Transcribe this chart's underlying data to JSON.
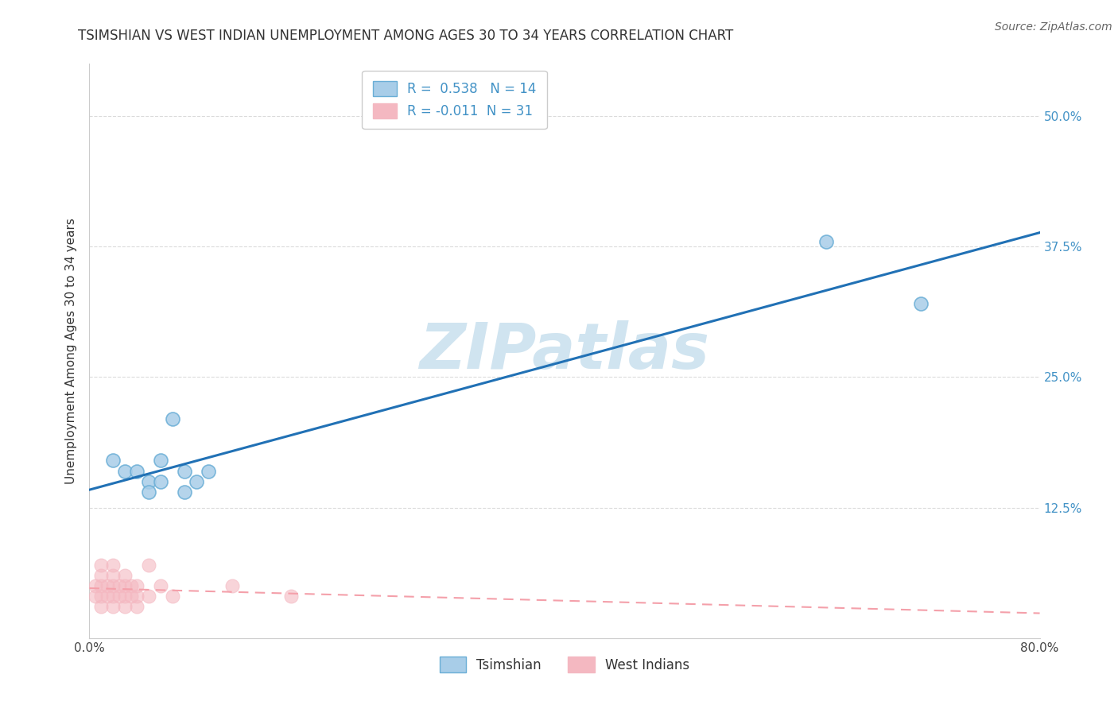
{
  "title": "TSIMSHIAN VS WEST INDIAN UNEMPLOYMENT AMONG AGES 30 TO 34 YEARS CORRELATION CHART",
  "source": "Source: ZipAtlas.com",
  "xlabel": "",
  "ylabel": "Unemployment Among Ages 30 to 34 years",
  "xlim": [
    0.0,
    0.8
  ],
  "ylim": [
    0.0,
    0.55
  ],
  "yticks": [
    0.0,
    0.125,
    0.25,
    0.375,
    0.5
  ],
  "ytick_labels_right": [
    "",
    "12.5%",
    "25.0%",
    "37.5%",
    "50.0%"
  ],
  "background_color": "#ffffff",
  "watermark": "ZIPatlas",
  "watermark_color": "#d0e4f0",
  "tsimshian_color": "#a8cde8",
  "tsimshian_edge_color": "#6aaed6",
  "west_indian_color": "#f4b8c1",
  "west_indian_edge_color": "#f4b8c1",
  "R_tsimshian": 0.538,
  "N_tsimshian": 14,
  "R_west_indian": -0.011,
  "N_west_indian": 31,
  "tsimshian_x": [
    0.02,
    0.03,
    0.04,
    0.05,
    0.05,
    0.06,
    0.06,
    0.07,
    0.08,
    0.08,
    0.09,
    0.1,
    0.62,
    0.7
  ],
  "tsimshian_y": [
    0.17,
    0.16,
    0.16,
    0.15,
    0.14,
    0.17,
    0.15,
    0.21,
    0.16,
    0.14,
    0.15,
    0.16,
    0.38,
    0.32
  ],
  "west_indian_x": [
    0.005,
    0.005,
    0.01,
    0.01,
    0.01,
    0.01,
    0.01,
    0.015,
    0.015,
    0.02,
    0.02,
    0.02,
    0.02,
    0.02,
    0.025,
    0.025,
    0.03,
    0.03,
    0.03,
    0.03,
    0.035,
    0.035,
    0.04,
    0.04,
    0.04,
    0.05,
    0.05,
    0.06,
    0.07,
    0.12,
    0.17
  ],
  "west_indian_y": [
    0.04,
    0.05,
    0.03,
    0.04,
    0.05,
    0.06,
    0.07,
    0.04,
    0.05,
    0.03,
    0.04,
    0.05,
    0.06,
    0.07,
    0.04,
    0.05,
    0.03,
    0.04,
    0.05,
    0.06,
    0.04,
    0.05,
    0.03,
    0.04,
    0.05,
    0.04,
    0.07,
    0.05,
    0.04,
    0.05,
    0.04
  ],
  "tsimshian_line_color": "#2171b5",
  "west_indian_line_color": "#f4a0aa",
  "grid_color": "#d8d8d8",
  "title_fontsize": 12,
  "label_fontsize": 11,
  "tick_fontsize": 11,
  "legend_fontsize": 12,
  "source_fontsize": 10,
  "right_tick_color": "#4292c6"
}
